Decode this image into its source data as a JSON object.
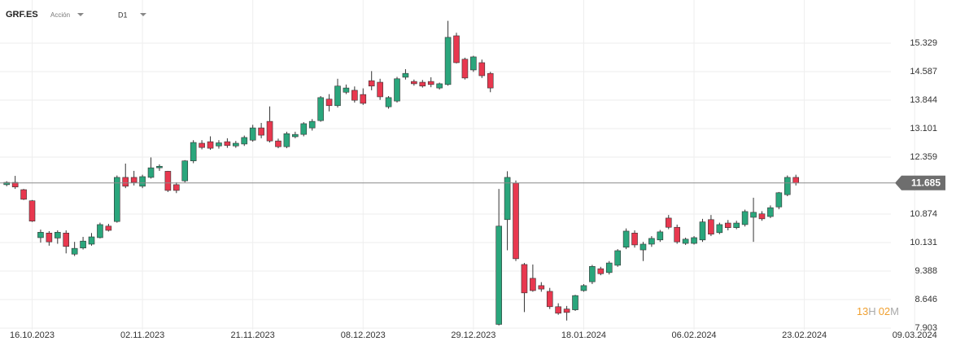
{
  "chart_data": {
    "type": "candlestick",
    "symbol": "GRF.ES",
    "instrument_type": "Acción",
    "timeframe": "D1",
    "countdown": {
      "hours": "13",
      "hours_unit": "H",
      "minutes": "02",
      "minutes_unit": "M"
    },
    "up_color": "#2aa67c",
    "down_color": "#e8384f",
    "grid": true,
    "ylim": [
      7.862,
      16.453
    ],
    "yticks": [
      7.903,
      8.646,
      9.388,
      10.131,
      10.874,
      12.359,
      13.101,
      13.844,
      14.587,
      15.329
    ],
    "last_price": 11.685,
    "categories": [
      null,
      null,
      null,
      "16.10.2023",
      null,
      null,
      null,
      null,
      null,
      null,
      null,
      null,
      null,
      null,
      null,
      null,
      "02.11.2023",
      null,
      null,
      null,
      null,
      null,
      null,
      null,
      null,
      null,
      null,
      null,
      null,
      "21.11.2023",
      null,
      null,
      null,
      null,
      null,
      null,
      null,
      null,
      null,
      null,
      null,
      null,
      "08.12.2023",
      null,
      null,
      null,
      null,
      null,
      null,
      null,
      null,
      null,
      null,
      null,
      null,
      "29.12.2023",
      null,
      null,
      null,
      null,
      null,
      null,
      null,
      null,
      null,
      null,
      null,
      null,
      "18.01.2024",
      null,
      null,
      null,
      null,
      null,
      null,
      null,
      null,
      null,
      null,
      null,
      null,
      "06.02.2024",
      null,
      null,
      null,
      null,
      null,
      null,
      null,
      null,
      null,
      null,
      null,
      null,
      "23.02.2024",
      null,
      null,
      null,
      null,
      null,
      null,
      null,
      null,
      null,
      null,
      null,
      null,
      "09.03.2024"
    ],
    "open": [
      11.64,
      11.7,
      11.51,
      11.22,
      10.26,
      10.38,
      10.25,
      10.38,
      9.83,
      9.99,
      10.09,
      10.26,
      10.56,
      10.68,
      11.83,
      11.83,
      11.6,
      11.83,
      12.08,
      11.99,
      11.64,
      11.74,
      12.26,
      12.72,
      12.76,
      12.65,
      12.76,
      12.65,
      12.7,
      12.8,
      13.12,
      13.29,
      12.78,
      12.63,
      12.89,
      12.95,
      13.12,
      13.31,
      13.87,
      13.7,
      14.05,
      14.1,
      13.99,
      14.35,
      14.31,
      13.67,
      13.82,
      14.44,
      14.33,
      14.31,
      14.33,
      14.16,
      14.25,
      15.52,
      14.91,
      14.63,
      14.82,
      14.54,
      8.0,
      10.73,
      11.68,
      9.56,
      9.2,
      9.01,
      8.86,
      8.46,
      8.4,
      8.38,
      8.88,
      9.11,
      9.45,
      9.35,
      9.54,
      10.01,
      10.38,
      9.94,
      10.09,
      10.2,
      10.77,
      10.53,
      10.11,
      10.11,
      10.2,
      10.73,
      10.39,
      10.64,
      10.52,
      10.6,
      10.79,
      10.88,
      10.81,
      11.06,
      11.38,
      11.83,
      null,
      null,
      null,
      null,
      null,
      null,
      null,
      null,
      null,
      null,
      null,
      null,
      null,
      null
    ],
    "high": [
      11.73,
      11.87,
      11.53,
      11.24,
      10.47,
      10.43,
      10.45,
      10.45,
      10.15,
      10.28,
      10.38,
      10.65,
      10.62,
      11.88,
      12.19,
      12.0,
      11.9,
      12.35,
      12.17,
      12.0,
      11.7,
      12.28,
      12.8,
      12.8,
      12.9,
      12.8,
      12.85,
      12.78,
      12.92,
      13.2,
      13.25,
      13.68,
      12.84,
      13.02,
      13.02,
      13.27,
      13.35,
      13.95,
      14.0,
      14.4,
      14.25,
      14.2,
      14.15,
      14.6,
      14.4,
      13.95,
      14.45,
      14.65,
      14.38,
      14.37,
      14.44,
      14.3,
      15.91,
      15.6,
      14.95,
      15.0,
      14.9,
      14.58,
      11.53,
      11.99,
      11.75,
      9.6,
      9.56,
      9.1,
      8.95,
      8.55,
      8.48,
      8.77,
      9.05,
      9.55,
      9.5,
      9.65,
      9.96,
      10.5,
      10.45,
      10.15,
      10.3,
      10.46,
      10.85,
      10.6,
      10.26,
      10.3,
      10.75,
      10.85,
      10.65,
      10.72,
      10.7,
      10.99,
      11.3,
      10.95,
      11.1,
      11.45,
      11.88,
      11.9,
      null,
      null,
      null,
      null,
      null,
      null,
      null,
      null,
      null,
      null,
      null,
      null,
      null,
      null
    ],
    "low": [
      11.6,
      11.53,
      11.24,
      10.67,
      10.13,
      10.05,
      10.1,
      9.85,
      9.78,
      9.95,
      10.05,
      10.24,
      10.42,
      10.65,
      11.55,
      11.62,
      11.55,
      11.8,
      12.0,
      11.45,
      11.42,
      11.7,
      12.2,
      12.56,
      12.55,
      12.58,
      12.6,
      12.6,
      12.65,
      12.76,
      12.85,
      12.74,
      12.59,
      12.59,
      12.85,
      12.9,
      13.05,
      13.28,
      13.55,
      13.65,
      14.0,
      13.78,
      13.72,
      14.1,
      13.85,
      13.62,
      13.78,
      14.38,
      14.22,
      14.17,
      14.18,
      14.12,
      14.22,
      14.8,
      14.38,
      14.58,
      14.42,
      14.05,
      7.97,
      9.93,
      9.65,
      8.32,
      8.85,
      8.85,
      8.4,
      8.25,
      8.1,
      8.35,
      8.85,
      9.05,
      9.28,
      9.3,
      9.5,
      9.96,
      10.0,
      9.65,
      10.02,
      10.15,
      10.48,
      10.1,
      10.07,
      10.08,
      10.15,
      10.3,
      10.35,
      10.45,
      10.48,
      10.55,
      10.15,
      10.7,
      10.77,
      11.0,
      11.34,
      11.62,
      null,
      null,
      null,
      null,
      null,
      null,
      null,
      null,
      null,
      null,
      null,
      null,
      null,
      null
    ],
    "close": [
      11.7,
      11.58,
      11.26,
      10.69,
      10.4,
      10.15,
      10.4,
      10.03,
      9.98,
      10.17,
      10.28,
      10.6,
      10.45,
      11.83,
      11.6,
      11.7,
      11.85,
      12.08,
      12.12,
      11.49,
      11.49,
      12.26,
      12.74,
      12.61,
      12.59,
      12.73,
      12.66,
      12.72,
      12.87,
      13.12,
      12.93,
      12.78,
      12.63,
      12.97,
      12.95,
      13.23,
      13.29,
      13.91,
      13.7,
      14.21,
      14.16,
      13.84,
      13.76,
      14.21,
      13.93,
      13.91,
      14.4,
      14.54,
      14.27,
      14.21,
      14.25,
      14.27,
      15.48,
      14.82,
      14.42,
      14.97,
      14.48,
      14.16,
      10.56,
      11.83,
      9.71,
      8.82,
      8.88,
      8.92,
      8.46,
      8.29,
      8.31,
      8.75,
      9.01,
      9.51,
      9.32,
      9.6,
      9.92,
      10.43,
      10.07,
      10.09,
      10.24,
      10.41,
      10.53,
      10.15,
      10.22,
      10.26,
      10.67,
      10.35,
      10.6,
      10.52,
      10.64,
      10.94,
      10.92,
      10.75,
      11.04,
      11.43,
      11.83,
      11.685,
      null,
      null,
      null,
      null,
      null,
      null,
      null,
      null,
      null,
      null,
      null,
      null,
      null,
      null
    ]
  }
}
